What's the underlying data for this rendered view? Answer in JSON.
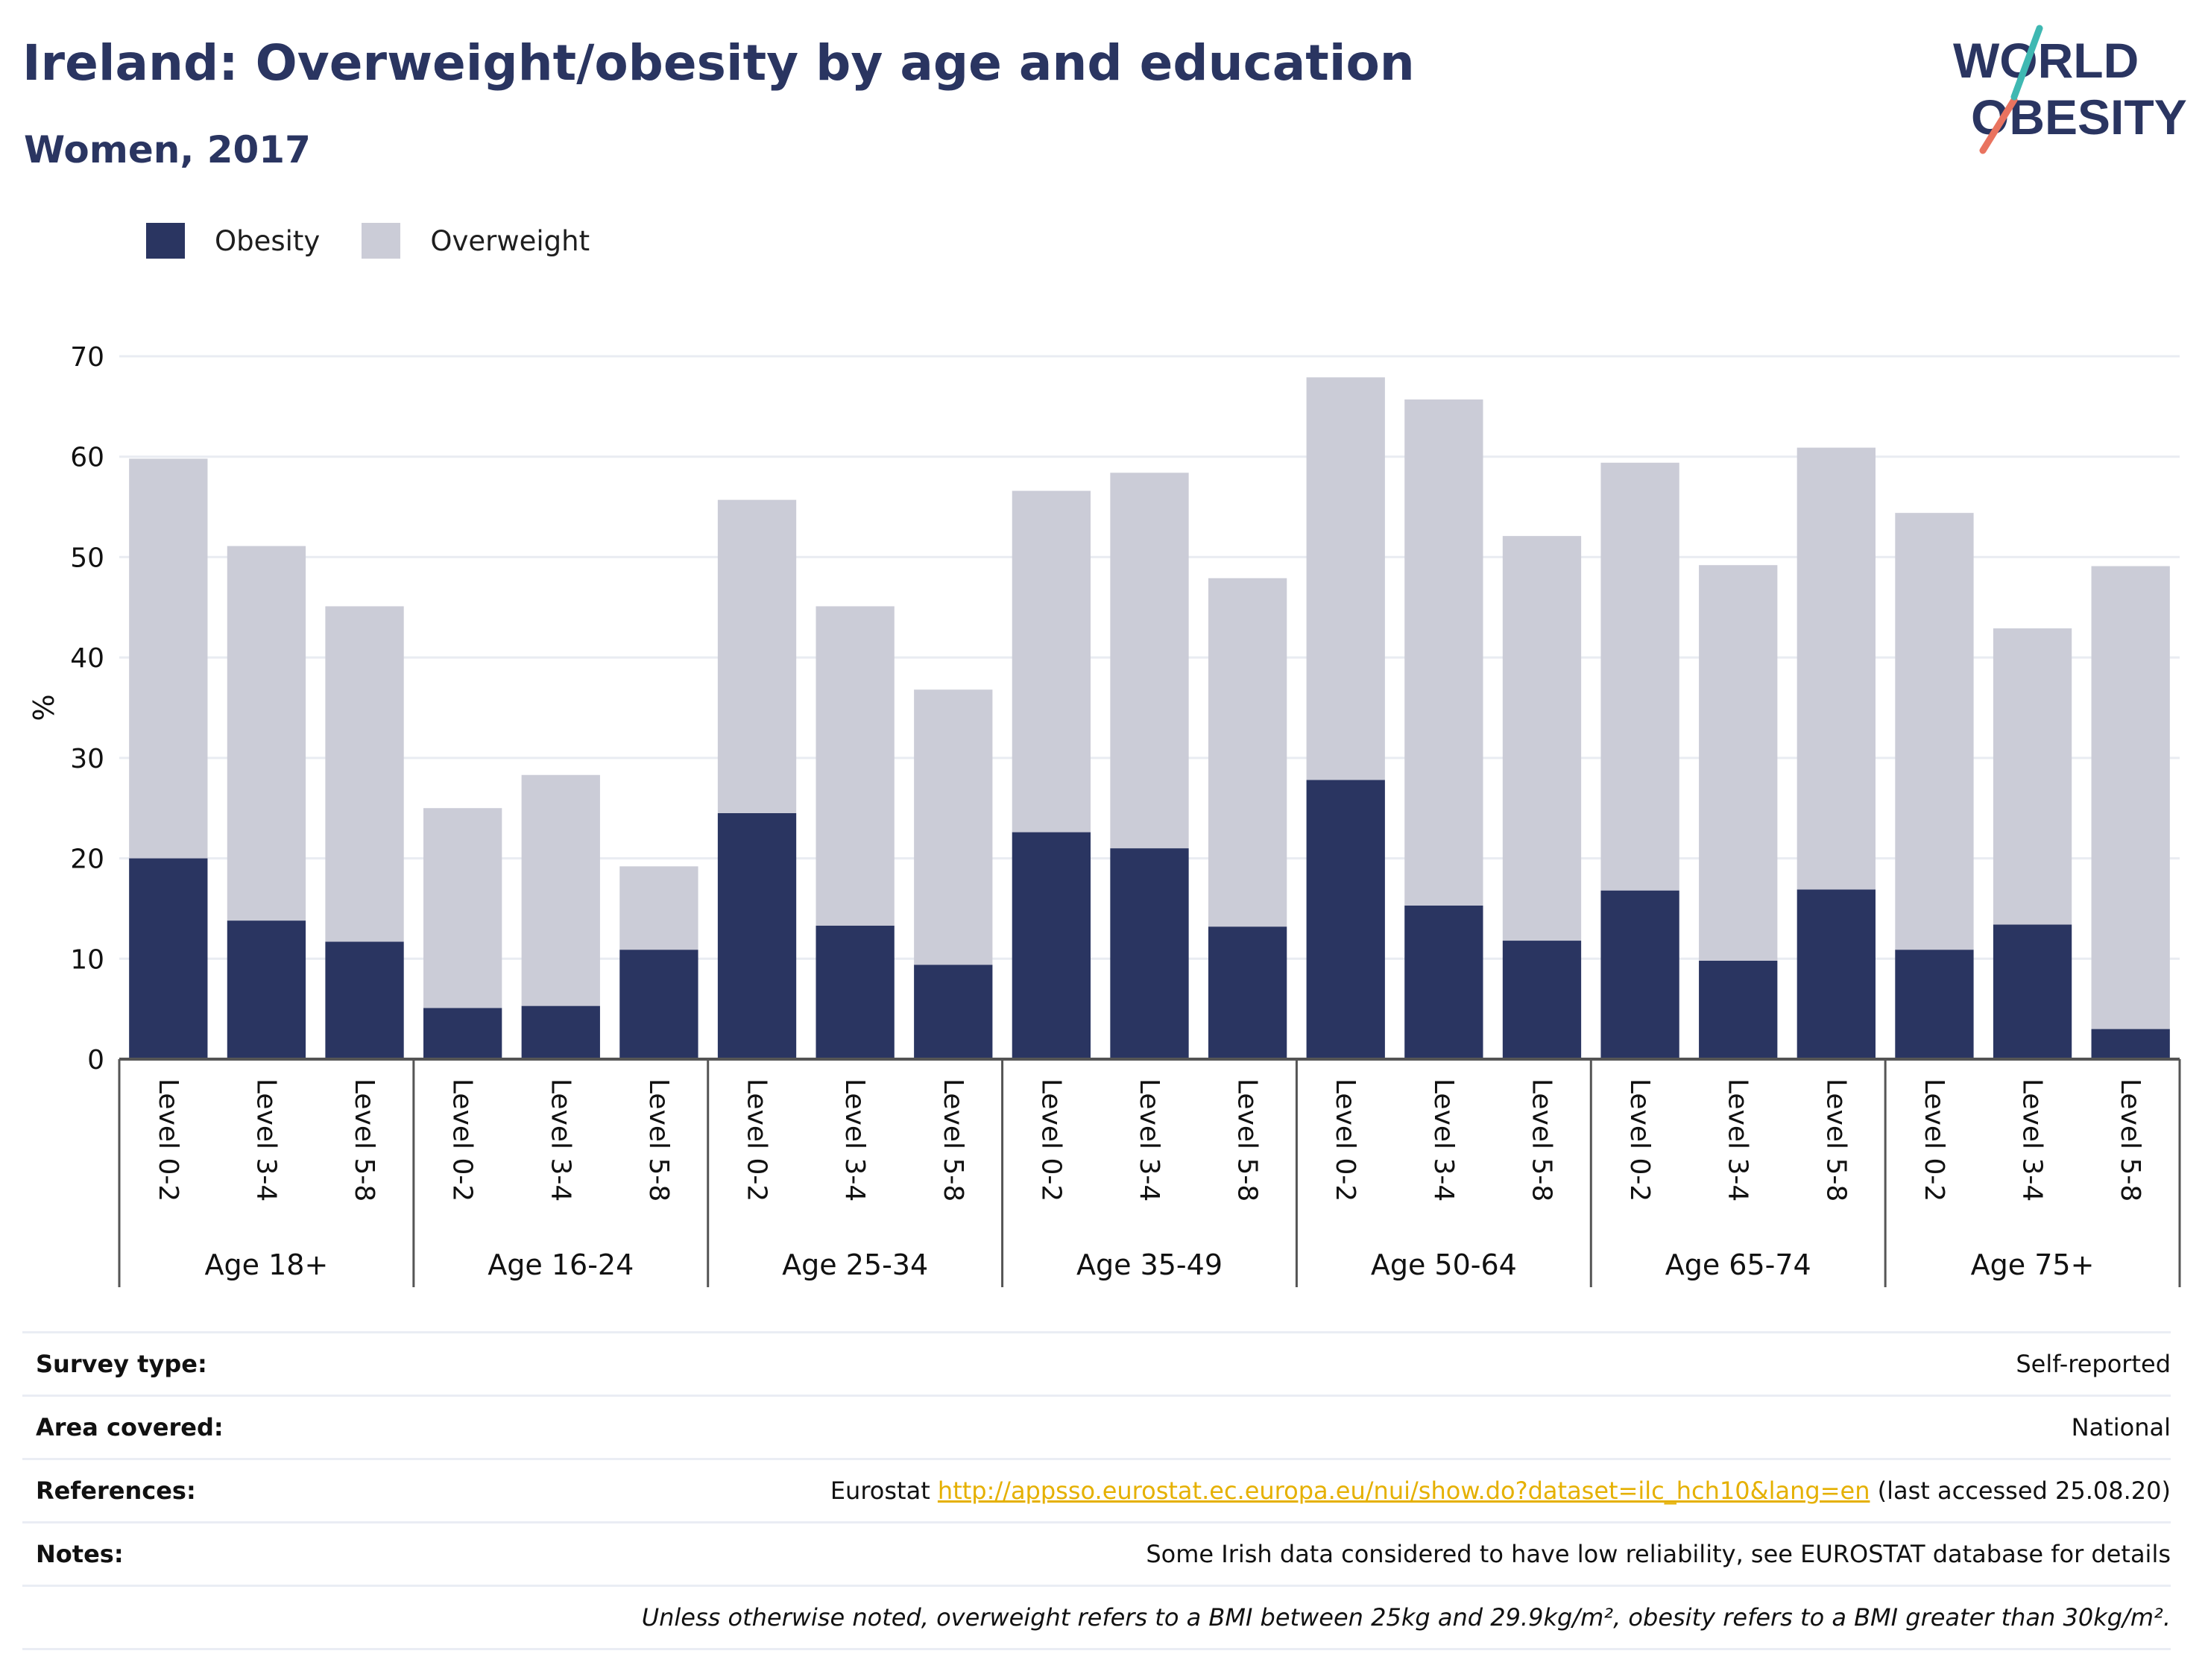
{
  "header": {
    "title": "Ireland: Overweight/obesity by age and education",
    "subtitle": "Women, 2017"
  },
  "logo": {
    "line1": "WORLD",
    "line2": "OBESITY"
  },
  "colors": {
    "obesity": "#2a3561",
    "overweight": "#cbccd7",
    "grid": "#e9ecf2",
    "axis": "#555555",
    "link": "#e5b000",
    "logo_teal": "#3fb8b2",
    "logo_coral": "#e9735f"
  },
  "chart_data": {
    "type": "bar",
    "stacked": true,
    "ylabel": "%",
    "ylim": [
      0,
      70
    ],
    "yticks": [
      0,
      10,
      20,
      30,
      40,
      50,
      60,
      70
    ],
    "grid": true,
    "legend_position": "top-left",
    "groups": [
      "Age 18+",
      "Age 16-24",
      "Age 25-34",
      "Age 35-49",
      "Age 50-64",
      "Age 65-74",
      "Age 75+"
    ],
    "categories": [
      "Level 0-2",
      "Level 3-4",
      "Level 5-8"
    ],
    "series": [
      {
        "name": "Obesity",
        "values": [
          [
            20,
            13.8,
            11.7
          ],
          [
            5.1,
            5.3,
            10.9
          ],
          [
            24.5,
            13.3,
            9.4
          ],
          [
            22.6,
            21,
            13.2
          ],
          [
            27.8,
            15.3,
            11.8
          ],
          [
            16.8,
            9.8,
            16.9
          ],
          [
            10.9,
            13.4,
            3
          ]
        ]
      },
      {
        "name": "Overweight",
        "values": [
          [
            39.8,
            37.3,
            33.4
          ],
          [
            19.9,
            23,
            8.3
          ],
          [
            31.2,
            31.8,
            27.4
          ],
          [
            34,
            37.4,
            34.7
          ],
          [
            40.1,
            50.4,
            40.3
          ],
          [
            42.6,
            39.4,
            44
          ],
          [
            43.5,
            29.5,
            46.1
          ]
        ]
      }
    ]
  },
  "info": {
    "survey_type_label": "Survey type:",
    "survey_type_value": "Self-reported",
    "area_label": "Area covered:",
    "area_value": "National",
    "references_label": "References:",
    "references_prefix": "Eurostat ",
    "references_link": "http://appsso.eurostat.ec.europa.eu/nui/show.do?dataset=ilc_hch10&lang=en",
    "references_suffix": " (last accessed 25.08.20)",
    "notes_label": "Notes:",
    "notes_value": "Some Irish data considered to have low reliability, see EUROSTAT database for details",
    "footnote": "Unless otherwise noted, overweight refers to a BMI between 25kg and 29.9kg/m², obesity refers to a BMI greater than 30kg/m²."
  }
}
